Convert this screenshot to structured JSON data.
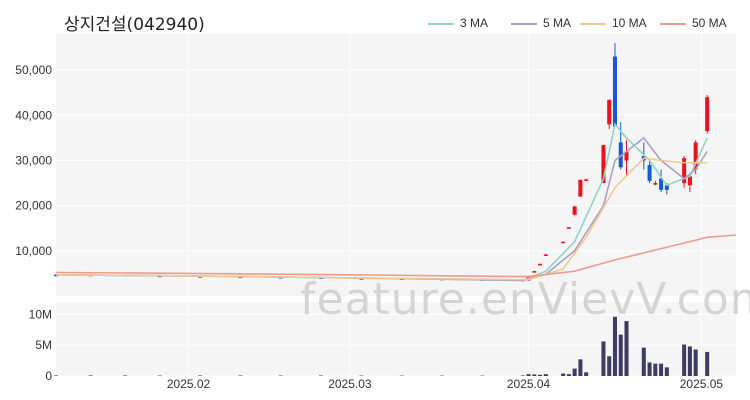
{
  "title": "상지건설(042940)",
  "watermark": "feature.enVievV.com",
  "colors": {
    "up": "#e8131b",
    "down": "#1558d8",
    "ma3": "#8fd3c8",
    "ma5": "#ab9fc6",
    "ma10": "#f2c890",
    "ma50": "#ef9b8b",
    "volume": "#3f3c63",
    "panel": "#f5f5f5",
    "grid": "#ffffff"
  },
  "chart_data": {
    "type": "candlestick",
    "title": "상지건설(042940)",
    "legend_position": "top-right",
    "legend": [
      {
        "label": "3 MA",
        "color": "#8fd3c8"
      },
      {
        "label": "5 MA",
        "color": "#ab9fc6"
      },
      {
        "label": "10 MA",
        "color": "#f2c890"
      },
      {
        "label": "50 MA",
        "color": "#ef9b8b"
      }
    ],
    "price_axis": {
      "min": 0,
      "max": 58000,
      "ticks": [
        "10,000",
        "20,000",
        "30,000",
        "40,000",
        "50,000"
      ],
      "tick_values": [
        10000,
        20000,
        30000,
        40000,
        50000
      ]
    },
    "volume_axis": {
      "min": 0,
      "max": 12000000,
      "ticks": [
        "0",
        "5M",
        "10M"
      ],
      "tick_values": [
        0,
        5000000,
        10000000
      ]
    },
    "x_axis": {
      "min": "2025-01-09",
      "max": "2025-05-07",
      "ticks": [
        "2025.02",
        "2025.03",
        "2025.04",
        "2025.05"
      ],
      "tick_dates": [
        "2025-02-01",
        "2025-03-01",
        "2025-04-01",
        "2025-05-01"
      ]
    },
    "grid": true,
    "candles": [
      {
        "date": "2025-01-09",
        "open": 4700,
        "high": 4800,
        "low": 4500,
        "close": 4600,
        "volume": 90000
      },
      {
        "date": "2025-01-15",
        "open": 4650,
        "high": 4800,
        "low": 4550,
        "close": 4700,
        "volume": 90000
      },
      {
        "date": "2025-01-21",
        "open": 4700,
        "high": 4800,
        "low": 4450,
        "close": 4500,
        "volume": 80000
      },
      {
        "date": "2025-01-27",
        "open": 4500,
        "high": 4600,
        "low": 4350,
        "close": 4400,
        "volume": 70000
      },
      {
        "date": "2025-02-03",
        "open": 4400,
        "high": 4500,
        "low": 4250,
        "close": 4300,
        "volume": 90000
      },
      {
        "date": "2025-02-10",
        "open": 4300,
        "high": 4400,
        "low": 4150,
        "close": 4200,
        "volume": 80000
      },
      {
        "date": "2025-02-17",
        "open": 4200,
        "high": 4300,
        "low": 4050,
        "close": 4100,
        "volume": 70000
      },
      {
        "date": "2025-02-24",
        "open": 4100,
        "high": 4200,
        "low": 3850,
        "close": 3900,
        "volume": 80000
      },
      {
        "date": "2025-03-03",
        "open": 3950,
        "high": 4050,
        "low": 3800,
        "close": 3900,
        "volume": 70000
      },
      {
        "date": "2025-03-10",
        "open": 3900,
        "high": 4000,
        "low": 3700,
        "close": 3800,
        "volume": 60000
      },
      {
        "date": "2025-03-17",
        "open": 3800,
        "high": 3900,
        "low": 3600,
        "close": 3700,
        "volume": 60000
      },
      {
        "date": "2025-03-24",
        "open": 3700,
        "high": 3800,
        "low": 3500,
        "close": 3600,
        "volume": 60000
      },
      {
        "date": "2025-03-31",
        "open": 3600,
        "high": 3700,
        "low": 3200,
        "close": 3300,
        "volume": 90000
      },
      {
        "date": "2025-04-01",
        "open": 3400,
        "high": 4500,
        "low": 3300,
        "close": 4300,
        "volume": 300000
      },
      {
        "date": "2025-04-02",
        "open": 5500,
        "high": 5600,
        "low": 5400,
        "close": 5500,
        "volume": 250000
      },
      {
        "date": "2025-04-03",
        "open": 7100,
        "high": 7200,
        "low": 7000,
        "close": 7100,
        "volume": 200000
      },
      {
        "date": "2025-04-04",
        "open": 9200,
        "high": 9300,
        "low": 9100,
        "close": 9200,
        "volume": 300000
      },
      {
        "date": "2025-04-07",
        "open": 12000,
        "high": 12100,
        "low": 11900,
        "close": 12000,
        "volume": 400000
      },
      {
        "date": "2025-04-08",
        "open": 15200,
        "high": 15300,
        "low": 15100,
        "close": 15200,
        "volume": 300000
      },
      {
        "date": "2025-04-09",
        "open": 18000,
        "high": 20000,
        "low": 17800,
        "close": 19800,
        "volume": 1200000
      },
      {
        "date": "2025-04-10",
        "open": 22000,
        "high": 25800,
        "low": 22000,
        "close": 25700,
        "volume": 2700000
      },
      {
        "date": "2025-04-11",
        "open": 25800,
        "high": 26000,
        "low": 25600,
        "close": 25800,
        "volume": 600000
      },
      {
        "date": "2025-04-14",
        "open": 25000,
        "high": 33500,
        "low": 25000,
        "close": 33400,
        "volume": 5600000
      },
      {
        "date": "2025-04-15",
        "open": 38000,
        "high": 43500,
        "low": 37000,
        "close": 43400,
        "volume": 3200000
      },
      {
        "date": "2025-04-16",
        "open": 53000,
        "high": 56000,
        "low": 38000,
        "close": 37500,
        "volume": 9600000
      },
      {
        "date": "2025-04-17",
        "open": 34000,
        "high": 38500,
        "low": 28000,
        "close": 28500,
        "volume": 6700000
      },
      {
        "date": "2025-04-18",
        "open": 30000,
        "high": 34500,
        "low": 26500,
        "close": 32000,
        "volume": 8900000
      },
      {
        "date": "2025-04-21",
        "open": 31000,
        "high": 34000,
        "low": 28000,
        "close": 30000,
        "volume": 4600000
      },
      {
        "date": "2025-04-22",
        "open": 29000,
        "high": 30000,
        "low": 25000,
        "close": 25500,
        "volume": 2200000
      },
      {
        "date": "2025-04-23",
        "open": 25000,
        "high": 25500,
        "low": 24500,
        "close": 25000,
        "volume": 2000000
      },
      {
        "date": "2025-04-24",
        "open": 26000,
        "high": 28000,
        "low": 23000,
        "close": 23500,
        "volume": 2000000
      },
      {
        "date": "2025-04-25",
        "open": 24500,
        "high": 25000,
        "low": 22500,
        "close": 23500,
        "volume": 1400000
      },
      {
        "date": "2025-04-28",
        "open": 25000,
        "high": 31000,
        "low": 24000,
        "close": 30500,
        "volume": 5100000
      },
      {
        "date": "2025-04-29",
        "open": 24500,
        "high": 27000,
        "low": 23000,
        "close": 26500,
        "volume": 4800000
      },
      {
        "date": "2025-04-30",
        "open": 28000,
        "high": 34500,
        "low": 27000,
        "close": 34000,
        "volume": 4300000
      },
      {
        "date": "2025-05-02",
        "open": 36500,
        "high": 44500,
        "low": 36000,
        "close": 44000,
        "volume": 3900000
      }
    ],
    "series": [
      {
        "name": "3 MA",
        "color": "#8fd3c8",
        "points": [
          [
            "2025-01-09",
            4700
          ],
          [
            "2025-02-01",
            4450
          ],
          [
            "2025-03-01",
            4000
          ],
          [
            "2025-03-31",
            3400
          ],
          [
            "2025-04-04",
            5500
          ],
          [
            "2025-04-09",
            12000
          ],
          [
            "2025-04-14",
            26000
          ],
          [
            "2025-04-16",
            38000
          ],
          [
            "2025-04-18",
            35000
          ],
          [
            "2025-04-22",
            30000
          ],
          [
            "2025-04-25",
            24500
          ],
          [
            "2025-04-29",
            26500
          ],
          [
            "2025-05-02",
            35000
          ]
        ]
      },
      {
        "name": "5 MA",
        "color": "#ab9fc6",
        "points": [
          [
            "2025-01-09",
            4700
          ],
          [
            "2025-02-01",
            4450
          ],
          [
            "2025-03-01",
            4000
          ],
          [
            "2025-03-31",
            3500
          ],
          [
            "2025-04-04",
            4800
          ],
          [
            "2025-04-09",
            10000
          ],
          [
            "2025-04-14",
            20000
          ],
          [
            "2025-04-16",
            30000
          ],
          [
            "2025-04-21",
            35000
          ],
          [
            "2025-04-24",
            30000
          ],
          [
            "2025-04-28",
            26000
          ],
          [
            "2025-04-30",
            28000
          ],
          [
            "2025-05-02",
            32000
          ]
        ]
      },
      {
        "name": "10 MA",
        "color": "#f2c890",
        "points": [
          [
            "2025-01-09",
            4700
          ],
          [
            "2025-02-01",
            4450
          ],
          [
            "2025-03-01",
            4000
          ],
          [
            "2025-04-01",
            3600
          ],
          [
            "2025-04-07",
            6000
          ],
          [
            "2025-04-11",
            13000
          ],
          [
            "2025-04-16",
            24000
          ],
          [
            "2025-04-21",
            30500
          ],
          [
            "2025-04-24",
            30000
          ],
          [
            "2025-04-28",
            29500
          ],
          [
            "2025-05-02",
            29500
          ]
        ]
      },
      {
        "name": "50 MA",
        "color": "#ef9b8b",
        "points": [
          [
            "2025-01-09",
            5200
          ],
          [
            "2025-02-01",
            5000
          ],
          [
            "2025-03-01",
            4700
          ],
          [
            "2025-04-01",
            4300
          ],
          [
            "2025-04-09",
            5500
          ],
          [
            "2025-04-16",
            8000
          ],
          [
            "2025-04-24",
            10500
          ],
          [
            "2025-05-02",
            13000
          ],
          [
            "2025-05-07",
            13500
          ]
        ]
      }
    ]
  }
}
